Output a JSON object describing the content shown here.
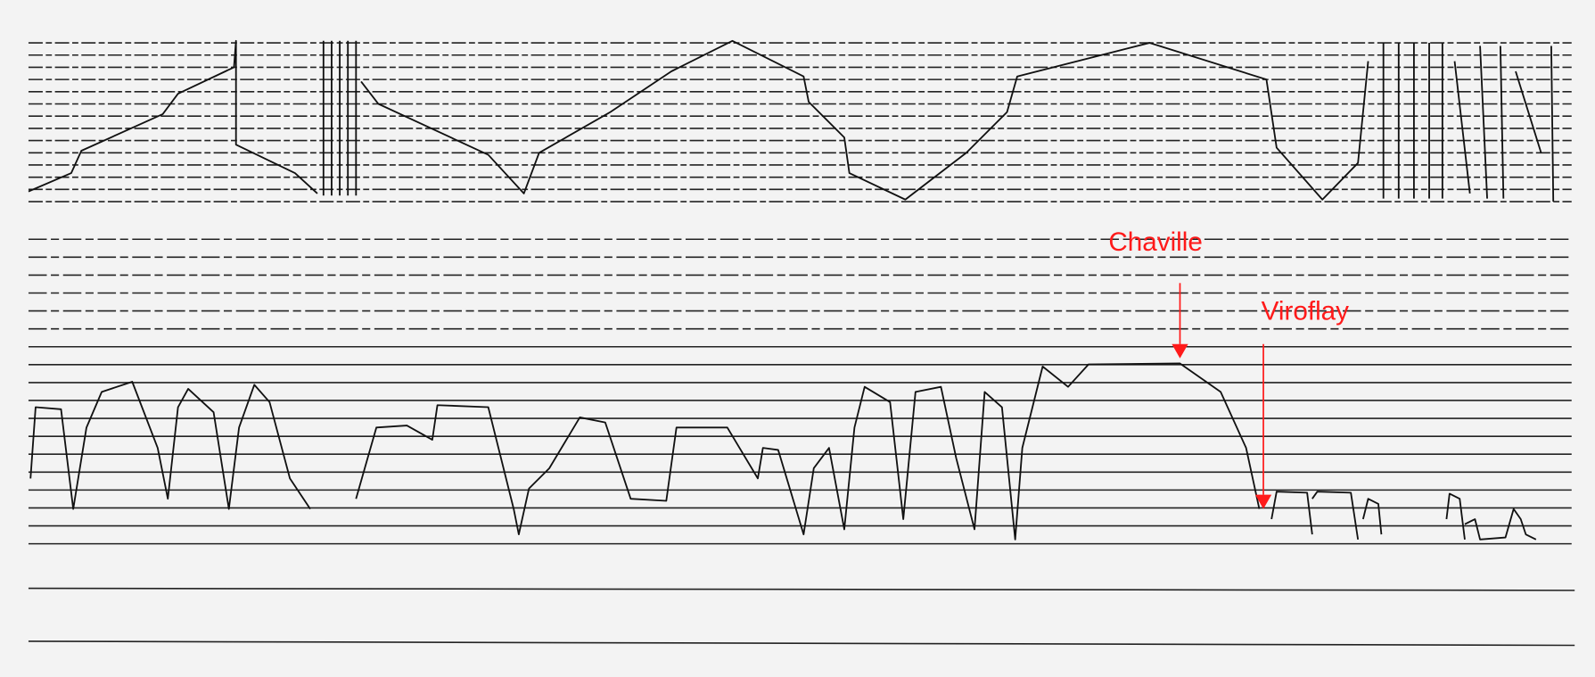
{
  "annotations": [
    {
      "label": "Chaville"
    },
    {
      "label": "Viroflay"
    }
  ]
}
